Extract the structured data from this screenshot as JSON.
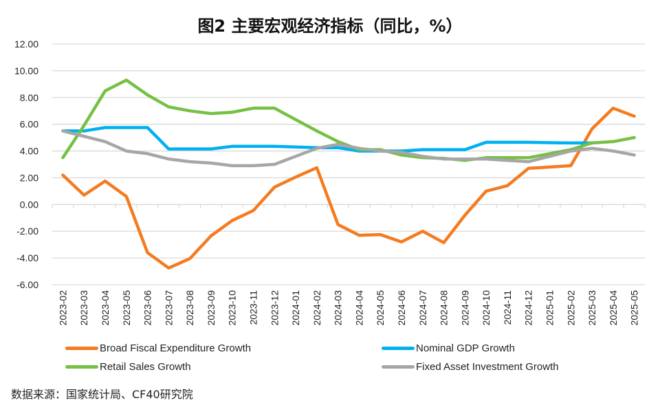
{
  "chart_data": {
    "type": "line",
    "title": "图2 主要宏观经济指标（同比，%）",
    "xlabel": "",
    "ylabel": "",
    "ylim": [
      -6,
      12
    ],
    "yticks": [
      12,
      10,
      8,
      6,
      4,
      2,
      0,
      -2,
      -4,
      -6
    ],
    "ytick_labels": [
      "12.00",
      "10.00",
      "8.00",
      "6.00",
      "4.00",
      "2.00",
      "0.00",
      "-2.00",
      "-4.00",
      "-6.00"
    ],
    "grid": true,
    "legend_position": "bottom",
    "categories": [
      "2023-02",
      "2023-03",
      "2023-04",
      "2023-05",
      "2023-06",
      "2023-07",
      "2023-08",
      "2023-09",
      "2023-10",
      "2023-11",
      "2023-12",
      "2024-01",
      "2024-02",
      "2024-03",
      "2024-04",
      "2024-05",
      "2024-06",
      "2024-07",
      "2024-08",
      "2024-09",
      "2024-10",
      "2024-11",
      "2024-12",
      "2025-01",
      "2025-02",
      "2025-03",
      "2025-04",
      "2025-05"
    ],
    "series": [
      {
        "name": "Broad Fiscal Expenditure Growth",
        "color": "#F47B20",
        "values": [
          2.2,
          0.7,
          1.75,
          0.6,
          -3.6,
          -4.75,
          -4.05,
          -2.35,
          -1.2,
          -0.45,
          1.3,
          2.05,
          2.75,
          -1.5,
          -2.3,
          -2.25,
          -2.8,
          -2.0,
          -2.85,
          -0.8,
          1.0,
          1.4,
          2.7,
          2.8,
          2.9,
          5.65,
          7.2,
          6.6
        ]
      },
      {
        "name": "Nominal GDP Growth",
        "color": "#00B0F0",
        "values": [
          5.5,
          5.5,
          5.75,
          5.75,
          5.75,
          4.15,
          4.15,
          4.15,
          4.35,
          4.35,
          4.35,
          4.3,
          4.25,
          4.25,
          4.0,
          4.0,
          4.0,
          4.1,
          4.1,
          4.1,
          4.65,
          4.65,
          4.65,
          4.62,
          4.6,
          4.6,
          null,
          null
        ]
      },
      {
        "name": "Retail Sales Growth",
        "color": "#76C043",
        "values": [
          3.5,
          5.9,
          8.5,
          9.3,
          8.2,
          7.3,
          7.0,
          6.8,
          6.9,
          7.2,
          7.2,
          6.35,
          5.5,
          4.7,
          4.1,
          4.1,
          3.7,
          3.5,
          3.45,
          3.3,
          3.5,
          3.5,
          3.5,
          3.8,
          4.1,
          4.6,
          4.7,
          5.0
        ]
      },
      {
        "name": "Fixed Asset Investment Growth",
        "color": "#A6A6A6",
        "values": [
          5.5,
          5.1,
          4.7,
          4.0,
          3.8,
          3.4,
          3.2,
          3.1,
          2.9,
          2.9,
          3.0,
          3.6,
          4.2,
          4.5,
          4.2,
          4.0,
          3.9,
          3.6,
          3.4,
          3.4,
          3.4,
          3.3,
          3.2,
          3.6,
          4.0,
          4.2,
          4.0,
          3.7
        ]
      }
    ]
  },
  "source_note": "数据来源：国家统计局、CF40研究院"
}
